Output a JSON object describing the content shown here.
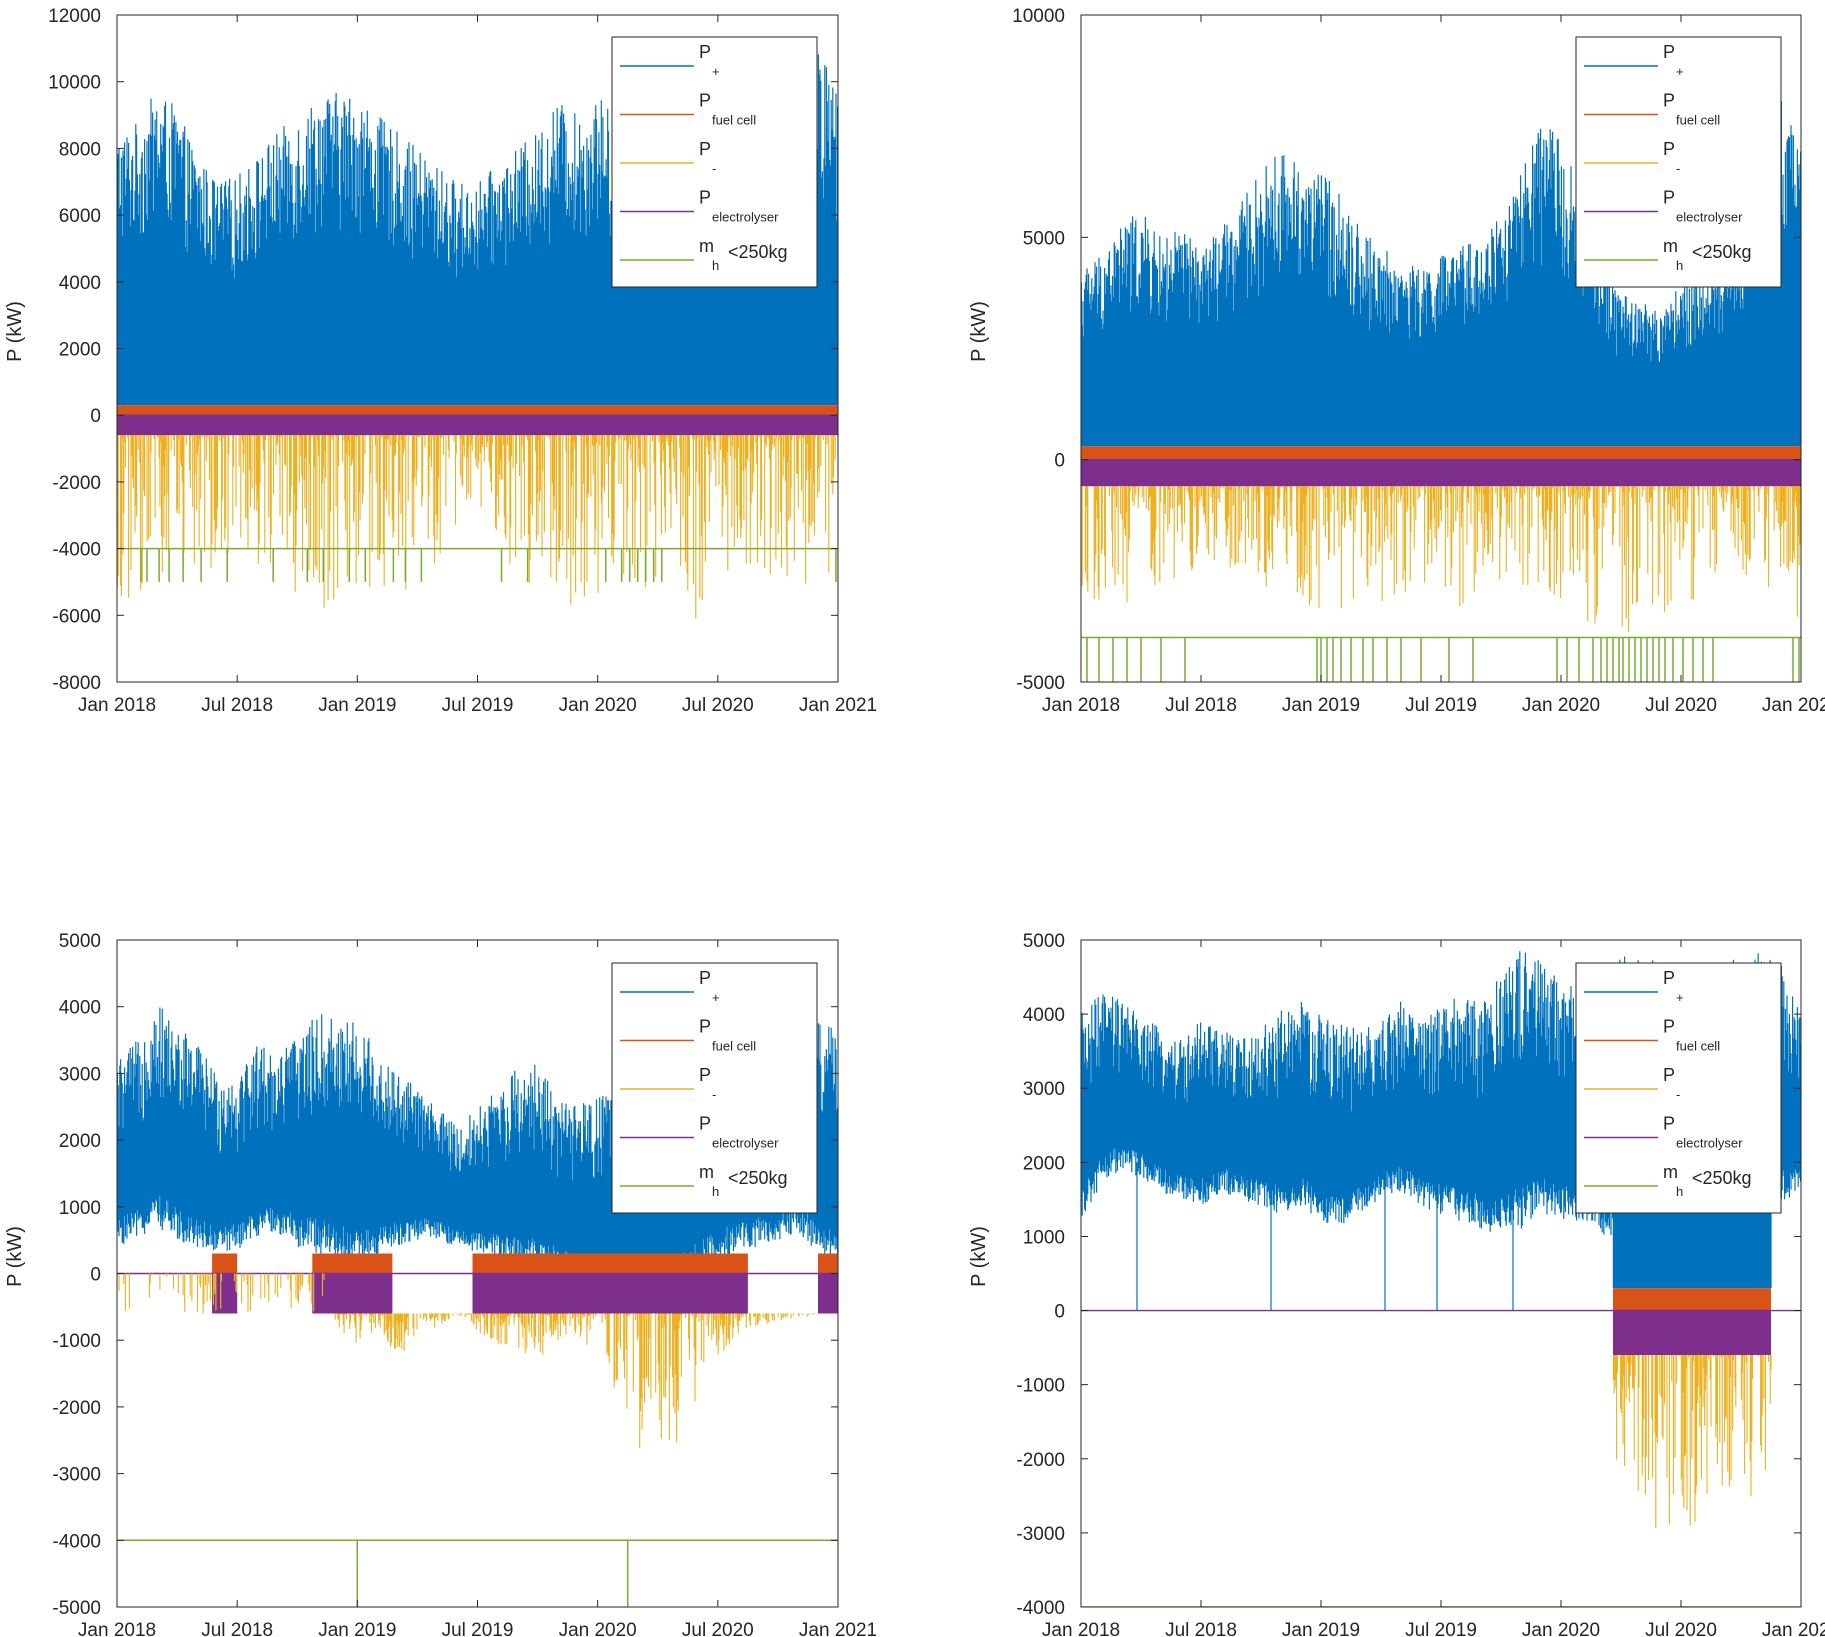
{
  "colors": {
    "p_plus": "#0072BD",
    "p_fuel_cell": "#D95319",
    "p_minus": "#EDB120",
    "p_electrolyser": "#7E2F8E",
    "m_h": "#77AC30",
    "axis": "#262626"
  },
  "legend": [
    {
      "key": "p_plus",
      "main": "P",
      "sub": "+",
      "tail": ""
    },
    {
      "key": "p_fuel_cell",
      "main": "P",
      "sub": "fuel cell",
      "tail": ""
    },
    {
      "key": "p_minus",
      "main": "P",
      "sub": "-",
      "tail": ""
    },
    {
      "key": "p_electrolyser",
      "main": "P",
      "sub": "electrolyser",
      "tail": ""
    },
    {
      "key": "m_h",
      "main": "m",
      "sub": "h",
      "tail": "<250kg"
    }
  ],
  "chart_data": [
    {
      "id": "top-left",
      "type": "line",
      "ylabel": "P (kW)",
      "ylim": [
        -8000,
        12000
      ],
      "yticks": [
        12000,
        10000,
        8000,
        6000,
        4000,
        2000,
        0,
        -2000,
        -4000,
        -6000,
        -8000
      ],
      "xlim": [
        0,
        36
      ],
      "xticks": [
        0,
        6,
        12,
        18,
        24,
        30,
        36
      ],
      "xtick_labels": [
        "Jan 2018",
        "Jul 2018",
        "Jan 2019",
        "Jul 2019",
        "Jan 2020",
        "Jul 2020",
        "Jan 2021"
      ],
      "x_unit": "months since Jan 2018",
      "series_summary": {
        "p_plus": {
          "envelope_months": [
            0,
            1,
            2,
            3,
            4,
            5,
            6,
            7,
            8,
            9,
            10,
            11,
            12,
            13,
            14,
            15,
            16,
            17,
            18,
            19,
            20,
            21,
            22,
            23,
            24,
            25,
            26,
            27,
            28,
            29,
            30,
            31,
            32,
            33,
            34,
            35,
            36
          ],
          "envelope_max": [
            8500,
            8800,
            9800,
            9200,
            7800,
            7000,
            7200,
            7800,
            8500,
            9000,
            9600,
            9700,
            9700,
            9000,
            8500,
            8000,
            7500,
            7000,
            7000,
            7500,
            8000,
            8500,
            9500,
            9000,
            9600,
            9000,
            9300,
            8000,
            7500,
            7000,
            6800,
            7000,
            7500,
            8000,
            9500,
            11000,
            10000
          ],
          "base_level": 300
        },
        "p_fuel_cell_level": 300,
        "p_electrolyser_level": -600,
        "p_minus": {
          "envelope_min": [
            -5500,
            -5800,
            -5000,
            -4500,
            -5000,
            -5500,
            -4000,
            -4500,
            -5000,
            -5800,
            -6000,
            -6000,
            -5800,
            -5600,
            -5700,
            -5000,
            -4500,
            -4000,
            -4200,
            -4500,
            -5200,
            -5400,
            -5500,
            -5800,
            -5600,
            -5800,
            -5700,
            -5500,
            -6000,
            -6100,
            -5000,
            -4500,
            -5000,
            -5000,
            -5200,
            -4800,
            -4800
          ]
        },
        "m_h": {
          "level": -4000,
          "low": -5000,
          "drop_months": [
            1.2,
            1.5,
            2.1,
            2.6,
            3.3,
            4.2,
            5.5,
            7.8,
            9.5,
            10.3,
            11.6,
            12.4,
            13.8,
            14.4,
            15.2,
            19.2,
            20.5,
            24.4,
            25.2,
            25.6,
            26.0,
            26.4,
            26.8,
            27.2,
            35.9
          ]
        }
      }
    },
    {
      "id": "top-right",
      "type": "line",
      "ylabel": "P (kW)",
      "ylim": [
        -5000,
        10000
      ],
      "yticks": [
        10000,
        5000,
        0,
        -5000
      ],
      "xlim": [
        0,
        36
      ],
      "xticks": [
        0,
        6,
        12,
        18,
        24,
        30,
        36
      ],
      "xtick_labels": [
        "Jan 2018",
        "Jul 2018",
        "Jan 2019",
        "Jul 2019",
        "Jan 2020",
        "Jul 2020",
        "Jan 2021"
      ],
      "x_unit": "months since Jan 2018",
      "series_summary": {
        "p_plus": {
          "envelope_max": [
            4300,
            4700,
            5300,
            5600,
            5000,
            5200,
            4800,
            5200,
            5800,
            6500,
            7000,
            6700,
            6500,
            6000,
            5200,
            4800,
            4500,
            4300,
            4600,
            4800,
            5000,
            5600,
            6500,
            7500,
            7400,
            6000,
            4500,
            3800,
            3600,
            3300,
            4000,
            4300,
            4600,
            5300,
            6600,
            8200,
            7000
          ],
          "base_level": 300
        },
        "p_fuel_cell_level": 300,
        "p_electrolyser_level": -600,
        "p_minus": {
          "envelope_min": [
            -3500,
            -3300,
            -3400,
            -3000,
            -2800,
            -2600,
            -2400,
            -2500,
            -2700,
            -3200,
            -3300,
            -3500,
            -3600,
            -3700,
            -3300,
            -3200,
            -3000,
            -3100,
            -3200,
            -3300,
            -3000,
            -2900,
            -2800,
            -3000,
            -3600,
            -3800,
            -3900,
            -4000,
            -3800,
            -3700,
            -3400,
            -3200,
            -3000,
            -2800,
            -2600,
            -3500,
            -3800
          ]
        },
        "m_h": {
          "level": -4000,
          "low": -5000,
          "drop_months": [
            0.3,
            0.9,
            1.6,
            2.3,
            3.0,
            4.0,
            5.2,
            11.8,
            12.0,
            12.3,
            12.6,
            13.0,
            13.5,
            14.1,
            14.6,
            15.3,
            16.0,
            17.0,
            18.4,
            19.6,
            23.8,
            24.3,
            24.9,
            25.6,
            26.0,
            26.3,
            26.6,
            26.9,
            27.1,
            27.4,
            27.7,
            28.0,
            28.3,
            28.6,
            28.9,
            29.2,
            29.6,
            30.1,
            30.6,
            31.1,
            31.6,
            35.6,
            35.9
          ]
        }
      }
    },
    {
      "id": "bottom-left",
      "type": "line",
      "ylabel": "P (kW)",
      "ylim": [
        -5000,
        5000
      ],
      "yticks": [
        5000,
        4000,
        3000,
        2000,
        1000,
        0,
        -1000,
        -2000,
        -3000,
        -4000,
        -5000
      ],
      "xlim": [
        0,
        36
      ],
      "xticks": [
        0,
        6,
        12,
        18,
        24,
        30,
        36
      ],
      "xtick_labels": [
        "Jan 2018",
        "Jul 2018",
        "Jan 2019",
        "Jul 2019",
        "Jan 2020",
        "Jul 2020",
        "Jan 2021"
      ],
      "x_unit": "months since Jan 2018",
      "series_summary": {
        "p_plus": {
          "envelope_max": [
            3200,
            3500,
            4100,
            3700,
            3500,
            3000,
            3000,
            3500,
            3300,
            3600,
            3900,
            3900,
            3800,
            3400,
            3000,
            2800,
            2500,
            2200,
            2500,
            2800,
            3100,
            3200,
            2600,
            2500,
            2700,
            2600,
            2400,
            2600,
            3000,
            3300,
            3600,
            3600,
            3400,
            3200,
            3300,
            3800,
            3700
          ],
          "envelope_min": [
            400,
            500,
            700,
            500,
            400,
            300,
            350,
            500,
            600,
            400,
            300,
            200,
            100,
            200,
            400,
            500,
            500,
            400,
            300,
            200,
            100,
            100,
            0,
            -100,
            -200,
            -300,
            -400,
            -300,
            -200,
            0,
            100,
            300,
            400,
            500,
            600,
            300,
            0
          ]
        },
        "p_fuel_cell_level": 300,
        "p_electrolyser_level": -600,
        "p_minus": {
          "envelope_min": [
            0,
            0,
            0,
            0,
            0,
            0,
            -200,
            0,
            0,
            0,
            0,
            -800,
            -1100,
            -900,
            -1300,
            -900,
            -800,
            -600,
            -900,
            -1100,
            -1200,
            -1300,
            -1000,
            -900,
            -1300,
            -1800,
            -2600,
            -2800,
            -2700,
            -1800,
            -1300,
            -900,
            -800,
            -700,
            -700,
            -600,
            -600
          ]
        },
        "m_h": {
          "level": -4000,
          "low": -5000,
          "drop_months": [
            12.0,
            25.5
          ]
        }
      }
    },
    {
      "id": "bottom-right",
      "type": "line",
      "ylabel": "P (kW)",
      "ylim": [
        -4000,
        5000
      ],
      "yticks": [
        5000,
        4000,
        3000,
        2000,
        1000,
        0,
        -1000,
        -2000,
        -3000,
        -4000
      ],
      "xlim": [
        0,
        36
      ],
      "xticks": [
        0,
        6,
        12,
        18,
        24,
        30,
        36
      ],
      "xtick_labels": [
        "Jan 2018",
        "Jul 2018",
        "Jan 2019",
        "Jul 2019",
        "Jan 2020",
        "Jul 2020",
        "Jan 2021"
      ],
      "x_unit": "months since Jan 2018",
      "series_summary": {
        "p_plus": {
          "envelope_max": [
            4000,
            4300,
            4200,
            4000,
            3800,
            3700,
            3900,
            3800,
            3700,
            3800,
            4100,
            4200,
            4000,
            3900,
            3800,
            3900,
            4200,
            4000,
            4100,
            4300,
            4200,
            4600,
            4900,
            4700,
            4500,
            4400,
            4600,
            4800,
            4900,
            4700,
            4600,
            4700,
            4800,
            4700,
            4900,
            4700,
            4200
          ],
          "envelope_min": [
            1200,
            1700,
            1900,
            1800,
            1600,
            1500,
            1400,
            1600,
            1500,
            1400,
            1300,
            1400,
            1200,
            1100,
            1300,
            1500,
            1600,
            1400,
            1300,
            1200,
            1100,
            1000,
            1100,
            1300,
            1200,
            1200,
            1000,
            1000,
            1000,
            1000,
            1000,
            1000,
            1000,
            1100,
            1300,
            1400,
            1600
          ],
          "spike_months": [
            2.8,
            9.5,
            15.2,
            17.8,
            21.6
          ]
        },
        "p_fuel_cell_level": 300,
        "p_electrolyser_level": -600,
        "deficit_window_months": [
          26.6,
          34.5
        ],
        "p_minus": {
          "envelope_min": [
            -2000,
            -2300,
            -2900,
            -3100,
            -3000,
            -2800,
            -3100,
            -2700,
            -2600,
            -2400,
            -2800,
            -2400,
            -2000
          ]
        },
        "m_h": {
          "level": -4000,
          "low": -4000,
          "drop_months": []
        }
      }
    }
  ]
}
